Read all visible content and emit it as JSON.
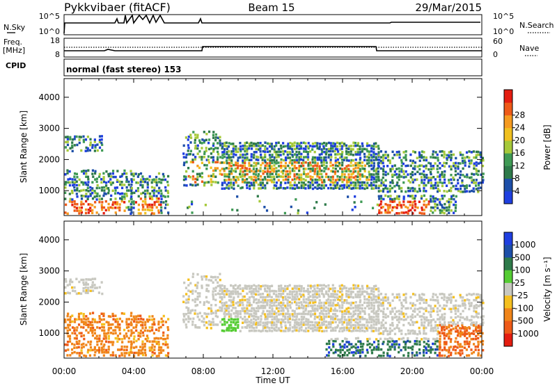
{
  "header": {
    "title": "Pykkvibaer (fitACF)",
    "beam": "Beam 15",
    "date": "29/Mar/2015"
  },
  "top_panels": {
    "nsky_label": "N.Sky",
    "nsearch_label": "N.Search",
    "nsky_ticks": [
      "10^5",
      "10^0"
    ],
    "nsearch_ticks": [
      "10^5",
      "10^0"
    ],
    "freq_label": "Freq.",
    "freq_unit": "[MHz]",
    "freq_ticks": [
      "18",
      "8"
    ],
    "nave_label": "Nave",
    "nave_ticks": [
      "60",
      "0"
    ],
    "cpid_label": "CPID",
    "cpid_text": "normal (fast stereo) 153"
  },
  "chart_data": [
    {
      "type": "heatmap",
      "name": "power-panel",
      "ylabel": "Slant Range [km]",
      "yticks": [
        "1000",
        "2000",
        "3000",
        "4000"
      ],
      "ylim": [
        200,
        4600
      ],
      "xlim": [
        0,
        24
      ],
      "colorbar_label": "Power [dB]",
      "colorbar_ticks": [
        "4",
        "8",
        "12",
        "16",
        "20",
        "24",
        "28"
      ],
      "colors": [
        "#1f3fe0",
        "#1d4fa8",
        "#2e7a4a",
        "#3f9a55",
        "#a6c93a",
        "#f0c020",
        "#f59a20",
        "#ee5a18",
        "#e41d10"
      ]
    },
    {
      "type": "heatmap",
      "name": "velocity-panel",
      "ylabel": "Slant Range [km]",
      "xlabel": "Time UT",
      "xticks": [
        "00:00",
        "04:00",
        "08:00",
        "12:00",
        "16:00",
        "20:00",
        "00:00"
      ],
      "yticks": [
        "1000",
        "2000",
        "3000",
        "4000"
      ],
      "ylim": [
        200,
        4600
      ],
      "xlim": [
        0,
        24
      ],
      "colorbar_label": "Velocity [m s⁻¹]",
      "colorbar_ticks": [
        "1000",
        "500",
        "100",
        "25",
        "-25",
        "-100",
        "-500",
        "-1000"
      ],
      "colors": [
        "#1f3fe0",
        "#1d4fa8",
        "#2e7a4a",
        "#55cc33",
        "#c8c8c0",
        "#f5c020",
        "#f0851a",
        "#ee5a18",
        "#e41d10"
      ]
    }
  ]
}
